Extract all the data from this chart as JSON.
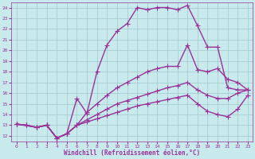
{
  "xlabel": "Windchill (Refroidissement éolien,°C)",
  "xlim": [
    -0.5,
    23.5
  ],
  "ylim": [
    11.5,
    24.5
  ],
  "xticks": [
    0,
    1,
    2,
    3,
    4,
    5,
    6,
    7,
    8,
    9,
    10,
    11,
    12,
    13,
    14,
    15,
    16,
    17,
    18,
    19,
    20,
    21,
    22,
    23
  ],
  "yticks": [
    12,
    13,
    14,
    15,
    16,
    17,
    18,
    19,
    20,
    21,
    22,
    23,
    24
  ],
  "bg_color": "#c8eaec",
  "grid_color": "#a0c8cc",
  "line_color": "#993399",
  "line_width": 1.0,
  "marker": "+",
  "marker_size": 4,
  "lines": [
    {
      "x": [
        0,
        1,
        2,
        3,
        4,
        5,
        6,
        7,
        8,
        9,
        10,
        11,
        12,
        13,
        14,
        15,
        16,
        17,
        18,
        19,
        20,
        21,
        22,
        23
      ],
      "y": [
        13.1,
        13.0,
        12.8,
        13.0,
        11.8,
        12.2,
        15.5,
        14.1,
        18.0,
        20.5,
        21.8,
        22.5,
        24.0,
        23.8,
        24.0,
        24.0,
        23.8,
        24.2,
        22.3,
        20.3,
        20.3,
        16.5,
        16.3,
        16.3
      ]
    },
    {
      "x": [
        0,
        2,
        3,
        4,
        5,
        6,
        7,
        8,
        9,
        10,
        11,
        12,
        13,
        14,
        15,
        16,
        17,
        18,
        19,
        20,
        21,
        22,
        23
      ],
      "y": [
        13.1,
        12.8,
        13.0,
        11.8,
        12.2,
        13.0,
        14.2,
        15.0,
        15.8,
        16.5,
        17.0,
        17.5,
        18.0,
        18.3,
        18.5,
        18.5,
        20.5,
        18.2,
        18.0,
        18.3,
        17.3,
        17.0,
        16.3
      ]
    },
    {
      "x": [
        0,
        1,
        2,
        3,
        4,
        5,
        6,
        7,
        8,
        9,
        10,
        11,
        12,
        13,
        14,
        15,
        16,
        17,
        18,
        19,
        20,
        21,
        22,
        23
      ],
      "y": [
        13.1,
        13.0,
        12.8,
        13.0,
        11.8,
        12.2,
        13.0,
        13.5,
        14.0,
        14.5,
        15.0,
        15.3,
        15.6,
        15.9,
        16.2,
        16.5,
        16.7,
        17.0,
        16.3,
        15.8,
        15.5,
        15.5,
        16.0,
        16.3
      ]
    },
    {
      "x": [
        0,
        1,
        2,
        3,
        4,
        5,
        6,
        7,
        8,
        9,
        10,
        11,
        12,
        13,
        14,
        15,
        16,
        17,
        18,
        19,
        20,
        21,
        22,
        23
      ],
      "y": [
        13.1,
        13.0,
        12.8,
        13.0,
        11.8,
        12.2,
        13.0,
        13.3,
        13.6,
        13.9,
        14.2,
        14.5,
        14.8,
        15.0,
        15.2,
        15.4,
        15.6,
        15.8,
        15.0,
        14.3,
        14.0,
        13.8,
        14.5,
        15.8
      ]
    }
  ],
  "title_bg": "#993399",
  "title_color": "#ffffff",
  "title_fontsize": 6.5,
  "axis_fontsize": 5.5,
  "tick_fontsize": 4.5
}
